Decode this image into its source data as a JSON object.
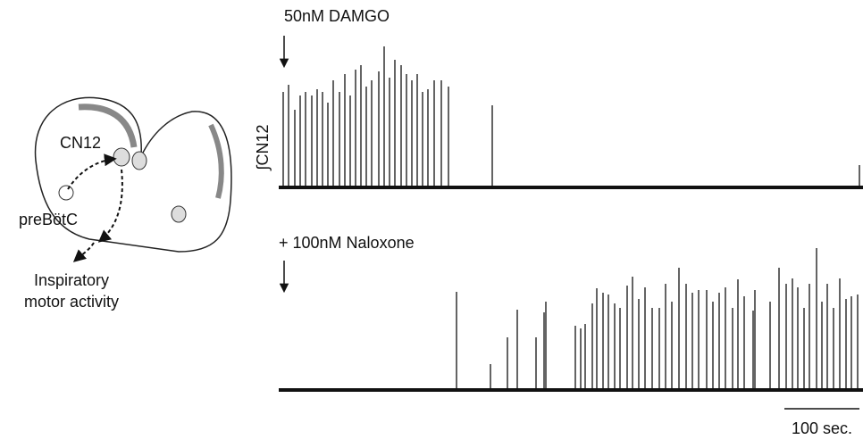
{
  "traces": {
    "top_label": "50nM DAMGO",
    "bottom_label": "+ 100nM Naloxone",
    "y_label": "∫CN12",
    "scale_bar": "100 sec."
  },
  "diagram": {
    "cn12": "CN12",
    "prebotc": "preBötC",
    "output_line1": "Inspiratory",
    "output_line2": "motor activity"
  }
}
